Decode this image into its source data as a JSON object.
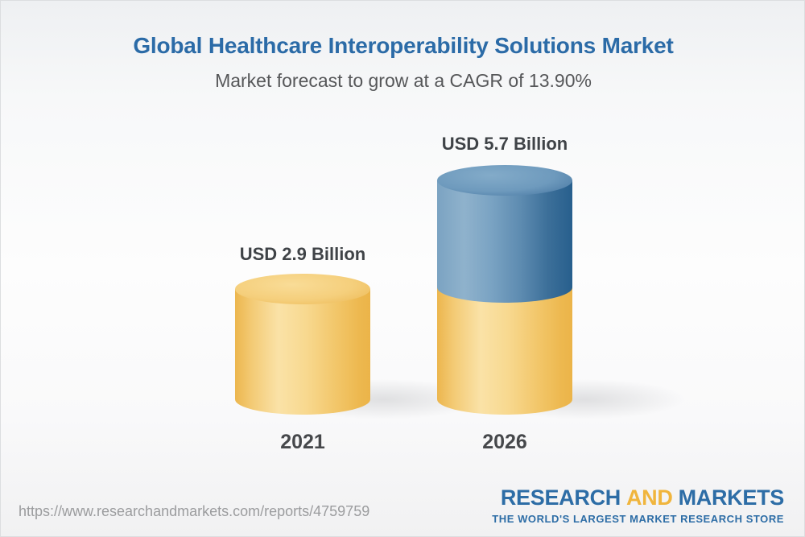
{
  "header": {
    "title": "Global Healthcare Interoperability Solutions Market",
    "subtitle": "Market forecast to grow at a CAGR of 13.90%"
  },
  "chart_data": {
    "type": "bar",
    "bar_style": "3d-cylinder",
    "categories": [
      "2021",
      "2026"
    ],
    "values": [
      2.9,
      5.7
    ],
    "unit": "USD Billion",
    "value_labels": [
      "USD 2.9 Billion",
      "USD 5.7 Billion"
    ],
    "title": "Global Healthcare Interoperability Solutions Market",
    "subtitle": "Market forecast to grow at a CAGR of 13.90%",
    "cagr_percent": 13.9,
    "legend": "none",
    "grid": false,
    "colors": {
      "base_segment_gold": "#f2c express",
      "base_segment": "#f5cf7c",
      "growth_segment": "#4b7fa7"
    },
    "notes": "2026 cylinder shows 2021 base in gold with incremental growth stacked in blue"
  },
  "bars": [
    {
      "year": "2021",
      "value_label": "USD 2.9 Billion"
    },
    {
      "year": "2026",
      "value_label": "USD 5.7 Billion"
    }
  ],
  "footer": {
    "url": "https://www.researchandmarkets.com/reports/4759759",
    "logo": {
      "word1": "RESEARCH",
      "word2": "AND",
      "word3": "MARKETS",
      "tagline": "THE WORLD'S LARGEST MARKET RESEARCH STORE"
    }
  },
  "colors": {
    "title_blue": "#2b6ba7",
    "subtitle_gray": "#565759",
    "label_dark": "#3f4347",
    "url_gray": "#9b9c9e",
    "logo_blue": "#2d6da6",
    "logo_gold": "#f0b53d",
    "cylinder_gold_edge": "#ecb64d",
    "cylinder_gold_light": "#fae2a7",
    "cylinder_blue_edge": "#275f8d",
    "cylinder_blue_light": "#8fb2cc"
  }
}
